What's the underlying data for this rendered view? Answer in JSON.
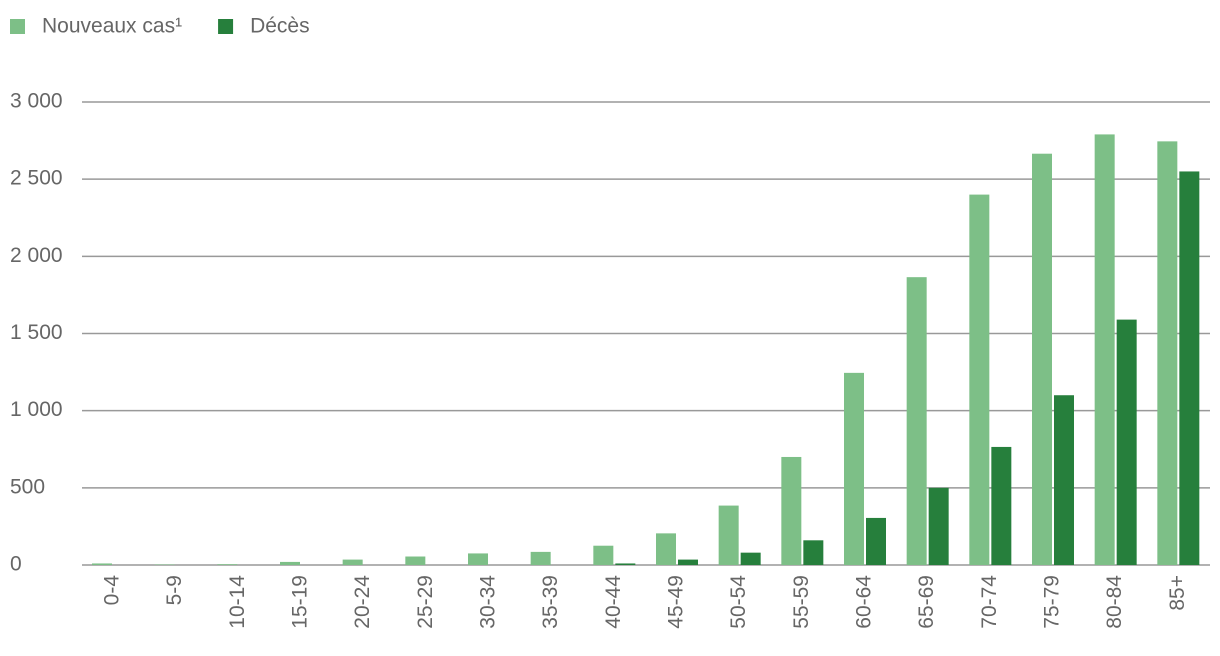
{
  "chart_data": {
    "type": "bar",
    "categories": [
      "0-4",
      "5-9",
      "10-14",
      "15-19",
      "20-24",
      "25-29",
      "30-34",
      "35-39",
      "40-44",
      "45-49",
      "50-54",
      "55-59",
      "60-64",
      "65-69",
      "70-74",
      "75-79",
      "80-84",
      "85+"
    ],
    "series": [
      {
        "name": "Nouveaux cas¹",
        "color": "#7dbf87",
        "values": [
          10,
          3,
          5,
          20,
          35,
          55,
          75,
          85,
          125,
          205,
          385,
          700,
          1245,
          1865,
          2400,
          2665,
          2790,
          2745
        ]
      },
      {
        "name": "Décès",
        "color": "#267f3c",
        "values": [
          0,
          0,
          0,
          0,
          0,
          0,
          0,
          0,
          10,
          35,
          80,
          160,
          305,
          500,
          765,
          1100,
          1590,
          2550
        ]
      }
    ],
    "ylim": [
      0,
      3000
    ],
    "yticks": [
      0,
      500,
      {
        "value": 1000,
        "label": "1 000"
      },
      {
        "value": 1500,
        "label": "1 500"
      },
      {
        "value": 2000,
        "label": "2 000"
      },
      {
        "value": 2500,
        "label": "2 500"
      },
      {
        "value": 3000,
        "label": "3 000"
      }
    ],
    "grid": true,
    "legend": "top-left"
  }
}
